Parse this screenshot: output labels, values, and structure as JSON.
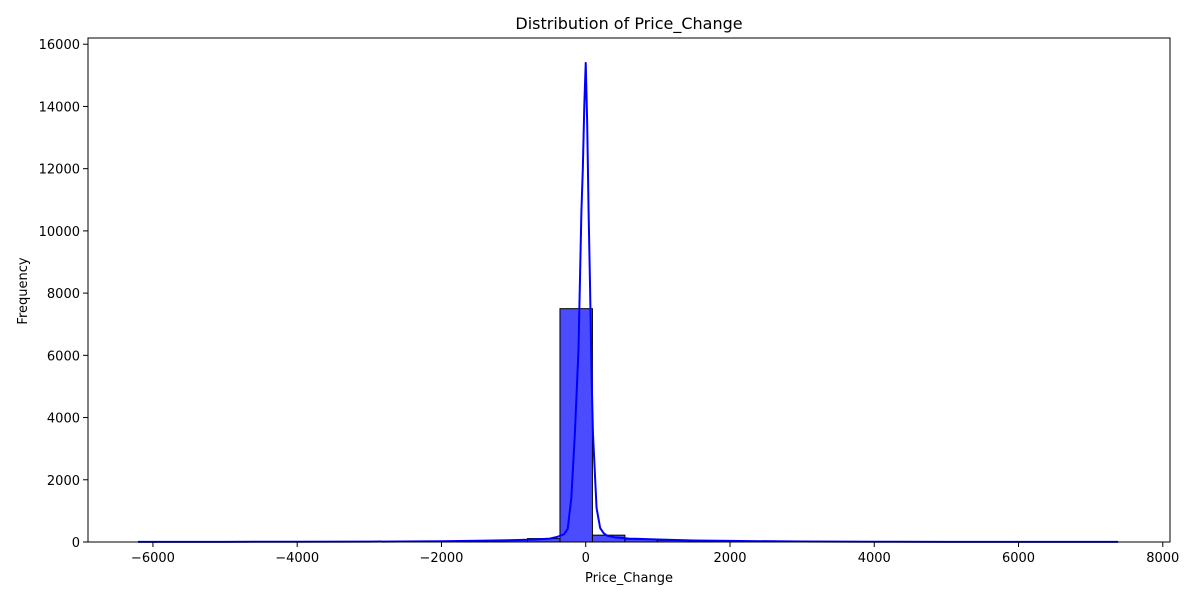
{
  "chart_data": {
    "type": "histogram",
    "title": "Distribution of Price_Change",
    "xlabel": "Price_Change",
    "ylabel": "Frequency",
    "xlim": [
      -6900,
      8100
    ],
    "ylim": [
      0,
      16200
    ],
    "xticks": [
      -6000,
      -4000,
      -2000,
      0,
      2000,
      4000,
      6000,
      8000
    ],
    "yticks": [
      0,
      2000,
      4000,
      6000,
      8000,
      10000,
      12000,
      14000,
      16000
    ],
    "grid": false,
    "bar_color": "#0000ff",
    "bar_opacity": 0.7,
    "bar_edge_color": "#000000",
    "kde_color": "#0000ff",
    "bins": [
      {
        "x0": -6207,
        "x1": -5757,
        "count": 1
      },
      {
        "x0": -5757,
        "x1": -5307,
        "count": 0
      },
      {
        "x0": -5307,
        "x1": -4857,
        "count": 0
      },
      {
        "x0": -4857,
        "x1": -4407,
        "count": 0
      },
      {
        "x0": -4407,
        "x1": -3957,
        "count": 2
      },
      {
        "x0": -3957,
        "x1": -3507,
        "count": 3
      },
      {
        "x0": -3507,
        "x1": -3057,
        "count": 5
      },
      {
        "x0": -3057,
        "x1": -2607,
        "count": 8
      },
      {
        "x0": -2607,
        "x1": -2157,
        "count": 12
      },
      {
        "x0": -2157,
        "x1": -1707,
        "count": 20
      },
      {
        "x0": -1707,
        "x1": -1257,
        "count": 35
      },
      {
        "x0": -1257,
        "x1": -807,
        "count": 60
      },
      {
        "x0": -807,
        "x1": -357,
        "count": 110
      },
      {
        "x0": -357,
        "x1": 93,
        "count": 7500
      },
      {
        "x0": 93,
        "x1": 543,
        "count": 220
      },
      {
        "x0": 543,
        "x1": 993,
        "count": 90
      },
      {
        "x0": 993,
        "x1": 1443,
        "count": 55
      },
      {
        "x0": 1443,
        "x1": 1893,
        "count": 35
      },
      {
        "x0": 1893,
        "x1": 2343,
        "count": 22
      },
      {
        "x0": 2343,
        "x1": 2793,
        "count": 14
      },
      {
        "x0": 2793,
        "x1": 3243,
        "count": 9
      },
      {
        "x0": 3243,
        "x1": 3693,
        "count": 6
      },
      {
        "x0": 3693,
        "x1": 4143,
        "count": 4
      },
      {
        "x0": 4143,
        "x1": 4593,
        "count": 3
      },
      {
        "x0": 4593,
        "x1": 5043,
        "count": 2
      },
      {
        "x0": 5043,
        "x1": 5493,
        "count": 1
      },
      {
        "x0": 5493,
        "x1": 5943,
        "count": 1
      },
      {
        "x0": 5943,
        "x1": 6393,
        "count": 1
      },
      {
        "x0": 6393,
        "x1": 6843,
        "count": 0
      },
      {
        "x0": 6843,
        "x1": 7293,
        "count": 1
      }
    ],
    "kde": {
      "x": [
        -6207,
        -5000,
        -4000,
        -3000,
        -2000,
        -1500,
        -1000,
        -700,
        -500,
        -400,
        -300,
        -250,
        -200,
        -150,
        -100,
        -80,
        -60,
        -40,
        -20,
        0,
        20,
        40,
        60,
        80,
        100,
        150,
        200,
        250,
        300,
        400,
        600,
        1000,
        1500,
        2000,
        3000,
        4000,
        5000,
        6000,
        7380
      ],
      "y": [
        5,
        5,
        8,
        12,
        25,
        40,
        60,
        80,
        110,
        160,
        250,
        420,
        1400,
        3500,
        6200,
        8400,
        10600,
        12000,
        14000,
        15400,
        13500,
        10600,
        8200,
        5500,
        3500,
        1100,
        450,
        280,
        200,
        150,
        110,
        80,
        50,
        35,
        15,
        8,
        5,
        4,
        3
      ]
    }
  }
}
